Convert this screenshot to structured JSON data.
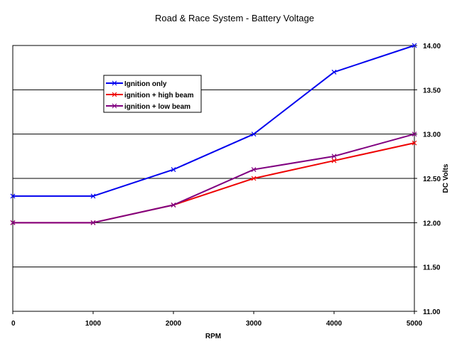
{
  "chart_data": {
    "type": "line",
    "title": "Road & Race System - Battery Voltage",
    "xlabel": "RPM",
    "ylabel": "DC Volts",
    "x": [
      0,
      1000,
      2000,
      3000,
      4000,
      5000
    ],
    "x_tick_labels": [
      "0",
      "1000",
      "2000",
      "3000",
      "4000",
      "5000"
    ],
    "xlim": [
      0,
      5000
    ],
    "ylim": [
      11.0,
      14.0
    ],
    "y_ticks": [
      11.0,
      11.5,
      12.0,
      12.5,
      13.0,
      13.5,
      14.0
    ],
    "y_tick_labels": [
      "11.00",
      "11.50",
      "12.00",
      "12.50",
      "13.00",
      "13.50",
      "14.00"
    ],
    "y_axis_side": "right",
    "grid": "horizontal",
    "legend_position": "upper-left",
    "series": [
      {
        "name": "Ignition only",
        "color": "#0000ee",
        "values": [
          12.3,
          12.3,
          12.6,
          13.0,
          13.7,
          14.0
        ]
      },
      {
        "name": "ignition + high beam",
        "color": "#ee0000",
        "values": [
          12.0,
          12.0,
          12.2,
          12.5,
          12.7,
          12.9
        ]
      },
      {
        "name": "ignition + low beam",
        "color": "#800080",
        "values": [
          12.0,
          12.0,
          12.2,
          12.6,
          12.75,
          13.0
        ]
      }
    ]
  }
}
